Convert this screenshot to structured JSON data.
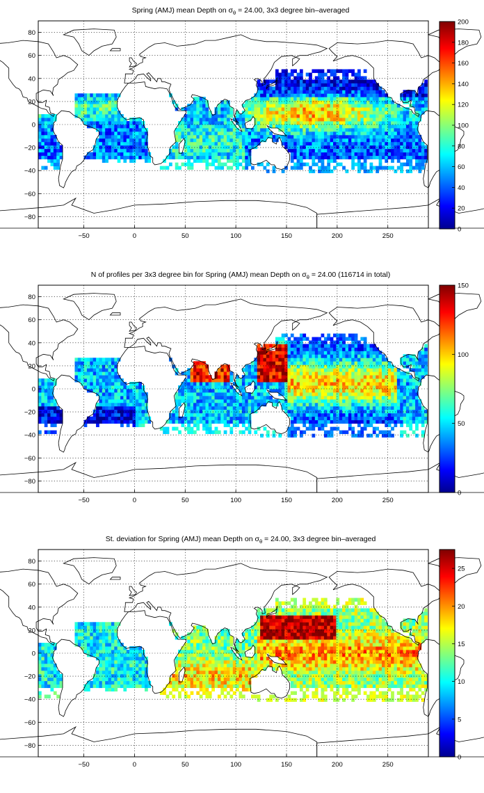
{
  "figure": {
    "colormap": "jet",
    "grid": "dotted",
    "map_overlay": "coastlines",
    "background": "#ffffff"
  },
  "chart_data": [
    {
      "type": "heatmap",
      "title_parts": [
        "Spring (AMJ) mean Depth on ",
        "σ",
        "θ",
        " = 24.00, 3x3 degree bin–averaged"
      ],
      "xlim": [
        -95,
        290
      ],
      "ylim": [
        -90,
        90
      ],
      "xticks": [
        -50,
        0,
        50,
        100,
        150,
        200,
        250
      ],
      "yticks": [
        -80,
        -60,
        -40,
        -20,
        0,
        20,
        40,
        60,
        80
      ],
      "xtick_labels": [
        "−50",
        "0",
        "50",
        "100",
        "150",
        "200",
        "250"
      ],
      "ytick_labels": [
        "−80",
        "−60",
        "−40",
        "−20",
        "0",
        "20",
        "40",
        "60",
        "80"
      ],
      "colorbar": {
        "min": 0,
        "max": 200,
        "ticks": [
          0,
          20,
          40,
          60,
          80,
          100,
          120,
          140,
          160,
          180,
          200
        ],
        "tick_labels": [
          "0",
          "20",
          "40",
          "60",
          "80",
          "100",
          "120",
          "140",
          "160",
          "180",
          "200"
        ]
      },
      "bins_deg": 3,
      "field": "depth"
    },
    {
      "type": "heatmap",
      "title_parts": [
        "N of profiles per 3x3 degree bin for Spring (AMJ) mean Depth on ",
        "σ",
        "θ",
        " = 24.00 (116714 in total)"
      ],
      "xlim": [
        -95,
        290
      ],
      "ylim": [
        -90,
        90
      ],
      "xticks": [
        -50,
        0,
        50,
        100,
        150,
        200,
        250
      ],
      "yticks": [
        -80,
        -60,
        -40,
        -20,
        0,
        20,
        40,
        60,
        80
      ],
      "xtick_labels": [
        "−50",
        "0",
        "50",
        "100",
        "150",
        "200",
        "250"
      ],
      "ytick_labels": [
        "−80",
        "−60",
        "−40",
        "−20",
        "0",
        "20",
        "40",
        "60",
        "80"
      ],
      "colorbar": {
        "min": 0,
        "max": 150,
        "ticks": [
          0,
          50,
          100,
          150
        ],
        "tick_labels": [
          "0",
          "50",
          "100",
          "150"
        ]
      },
      "bins_deg": 3,
      "total_profiles": 116714,
      "field": "count"
    },
    {
      "type": "heatmap",
      "title_parts": [
        "St. deviation for Spring (AMJ) mean Depth on ",
        "σ",
        "θ",
        " = 24.00, 3x3 degree bin–averaged"
      ],
      "xlim": [
        -95,
        290
      ],
      "ylim": [
        -90,
        90
      ],
      "xticks": [
        -50,
        0,
        50,
        100,
        150,
        200,
        250
      ],
      "yticks": [
        -80,
        -60,
        -40,
        -20,
        0,
        20,
        40,
        60,
        80
      ],
      "xtick_labels": [
        "−50",
        "0",
        "50",
        "100",
        "150",
        "200",
        "250"
      ],
      "ytick_labels": [
        "−80",
        "−60",
        "−40",
        "−20",
        "0",
        "20",
        "40",
        "60",
        "80"
      ],
      "colorbar": {
        "min": 0,
        "max": 27.5,
        "ticks": [
          0,
          5,
          10,
          15,
          20,
          25
        ],
        "tick_labels": [
          "0",
          "5",
          "10",
          "15",
          "20",
          "25"
        ]
      },
      "bins_deg": 3,
      "field": "stddev"
    }
  ]
}
